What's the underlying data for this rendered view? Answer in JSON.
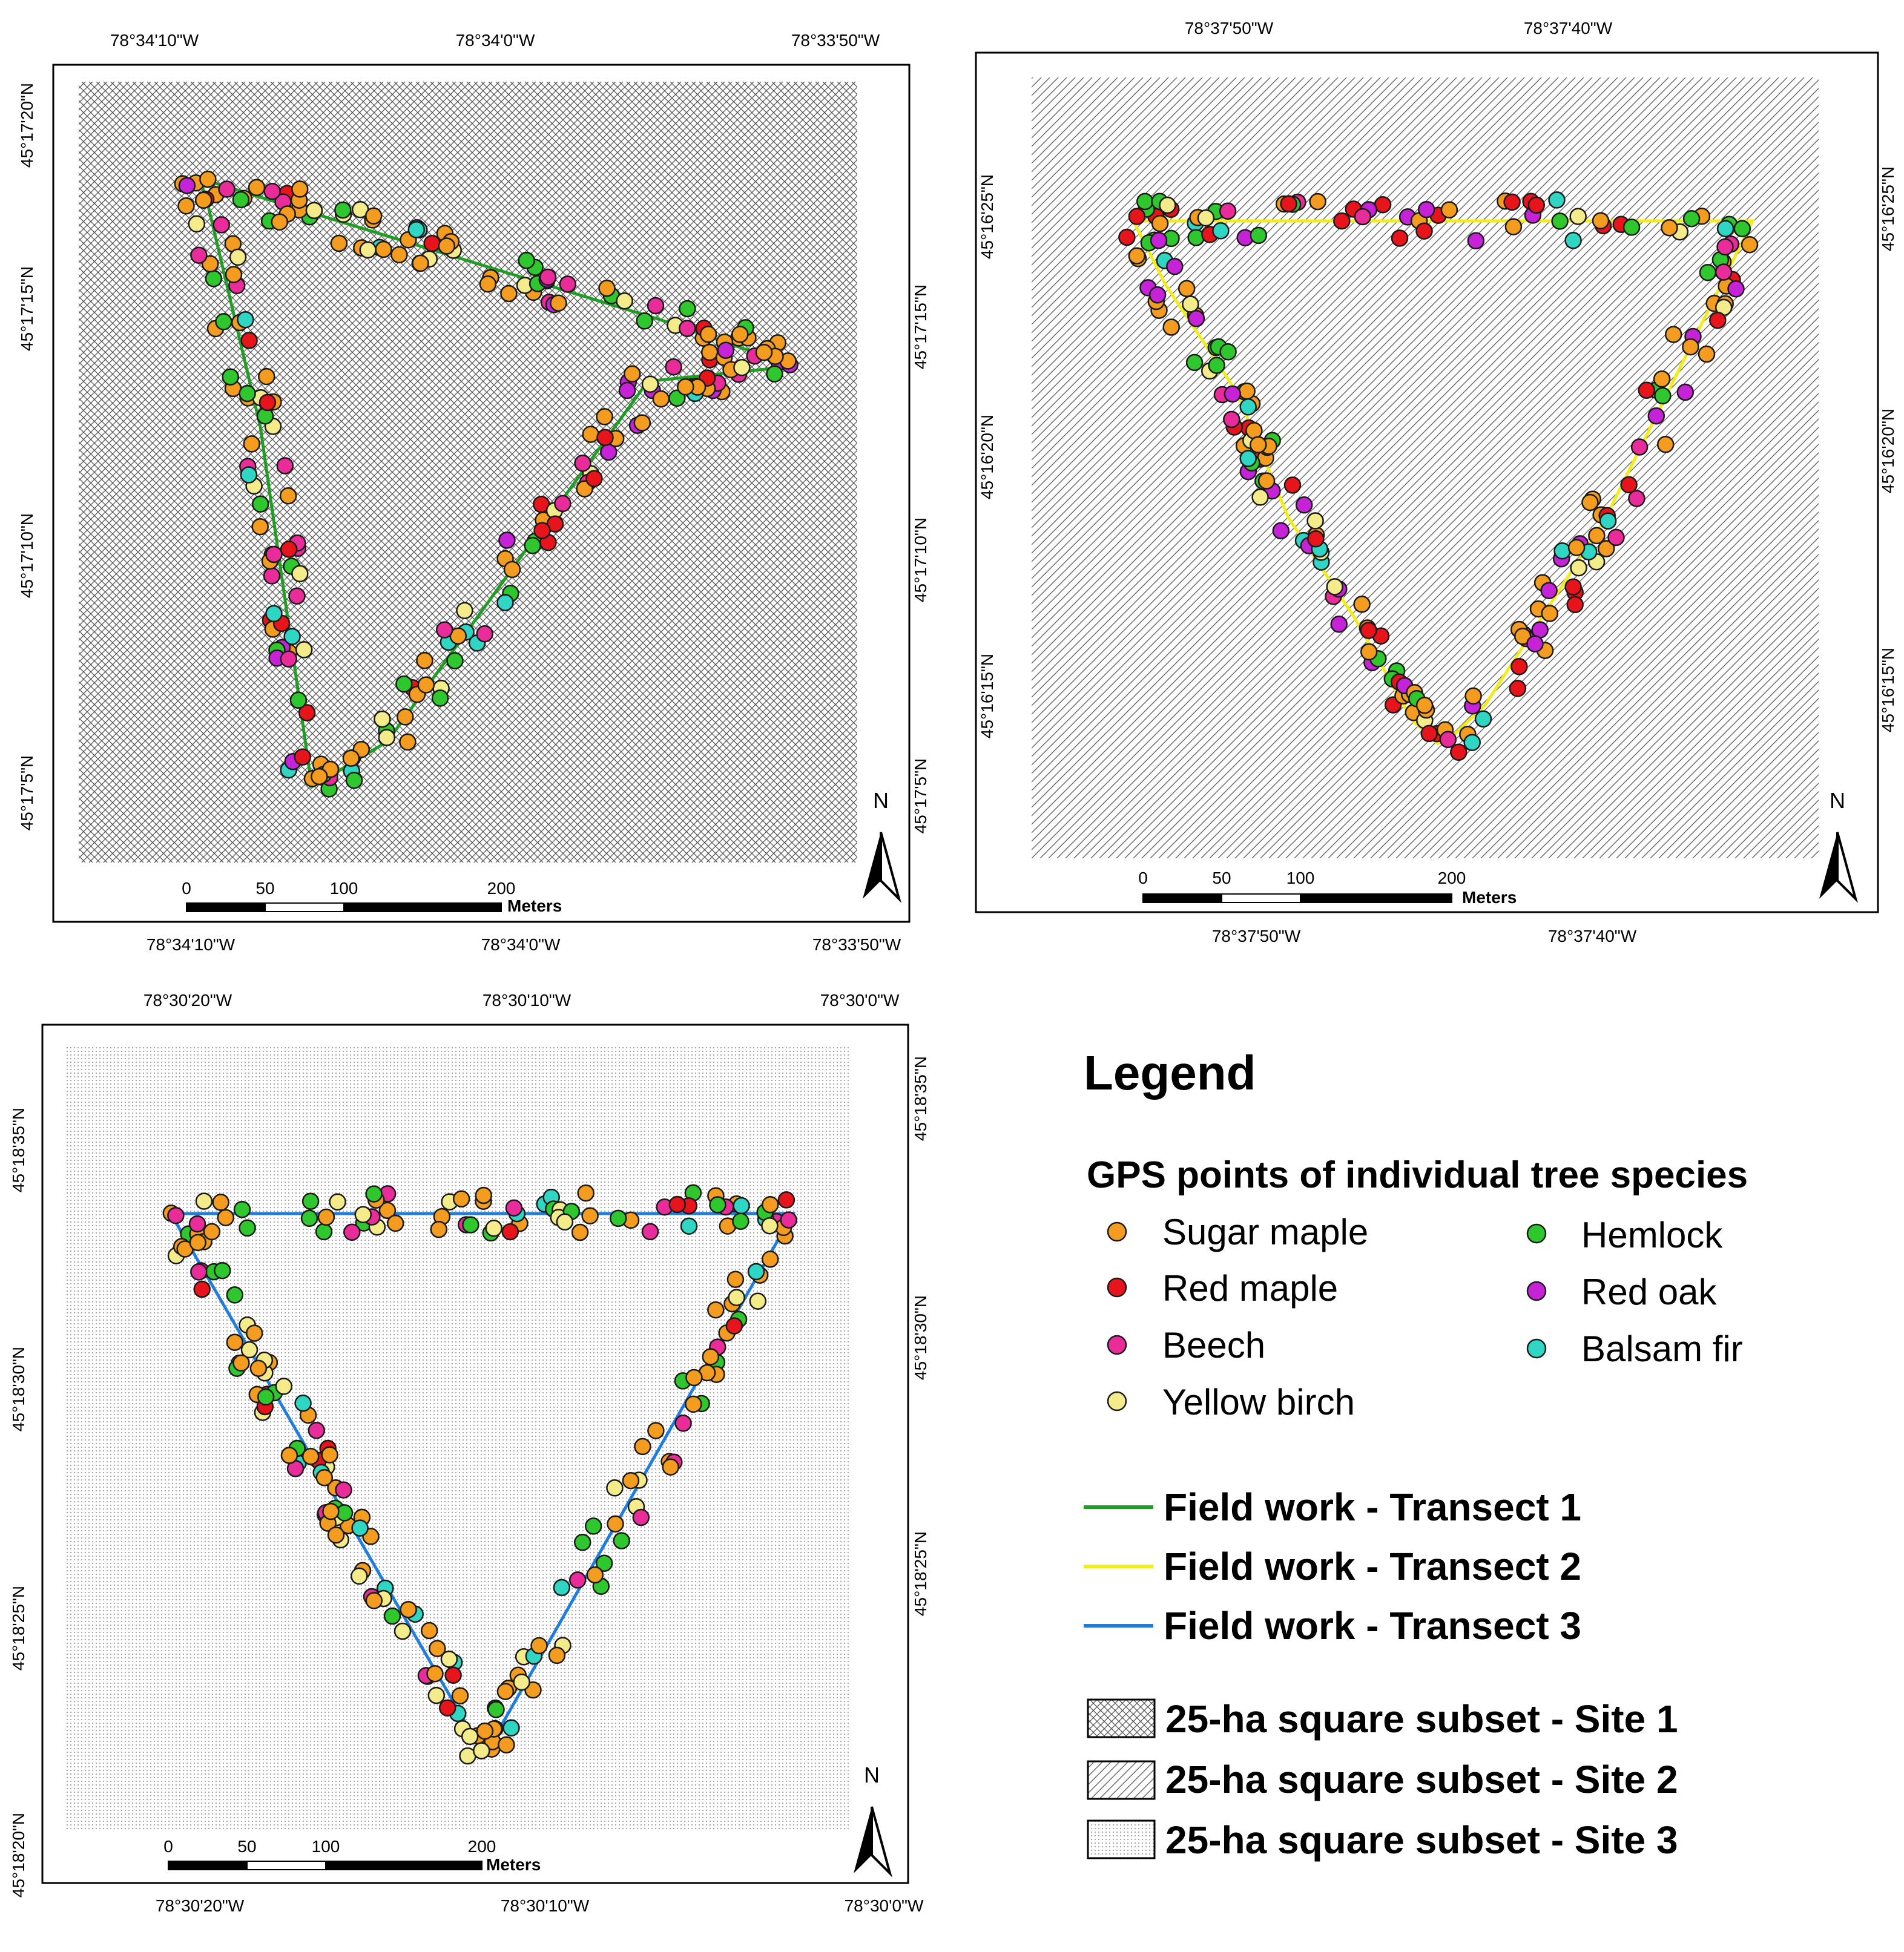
{
  "species": [
    {
      "key": "sm",
      "label": "Sugar maple",
      "color": "#f39c1f"
    },
    {
      "key": "rm",
      "label": "Red maple",
      "color": "#e8141b"
    },
    {
      "key": "be",
      "label": "Beech",
      "color": "#ea2c9a"
    },
    {
      "key": "yb",
      "label": "Yellow birch",
      "color": "#f4ec8a"
    },
    {
      "key": "he",
      "label": "Hemlock",
      "color": "#2ec72e"
    },
    {
      "key": "ro",
      "label": "Red oak",
      "color": "#c623d8"
    },
    {
      "key": "bf",
      "label": "Balsam fir",
      "color": "#2fd6c4"
    }
  ],
  "legend": {
    "title": "Legend",
    "subtitle": "GPS points of individual tree species",
    "transects": [
      {
        "label": "Field work - Transect 1",
        "color": "#1e9e22"
      },
      {
        "label": "Field work - Transect 2",
        "color": "#f2ee15"
      },
      {
        "label": "Field work - Transect 3",
        "color": "#1f7de0"
      }
    ],
    "subsets": [
      {
        "label": "25-ha square subset - Site 1",
        "pattern": "crosshatch"
      },
      {
        "label": "25-ha square subset - Site 2",
        "pattern": "diagonal"
      },
      {
        "label": "25-ha square subset - Site 3",
        "pattern": "dotted"
      }
    ]
  },
  "maps": [
    {
      "id": "site1",
      "transect_color": "#1e9e22",
      "pattern": "crosshatch",
      "top_ticks": [
        "78°34'10\"W",
        "78°34'0\"W",
        "78°33'50\"W"
      ],
      "bottom_ticks": [
        "78°34'10\"W",
        "78°34'0\"W",
        "78°33'50\"W"
      ],
      "left_ticks": [
        "45°17'20\"N",
        "45°17'15\"N",
        "45°17'10\"N",
        "45°17'5\"N"
      ],
      "right_ticks": [
        "45°17'15\"N",
        "45°17'10\"N",
        "45°17'5\"N"
      ],
      "scale_labels": [
        "0",
        "50",
        "100",
        "200"
      ],
      "scale_unit": "Meters",
      "north": "N"
    },
    {
      "id": "site2",
      "transect_color": "#f2ee15",
      "pattern": "diagonal",
      "top_ticks": [
        "78°37'50\"W",
        "78°37'40\"W"
      ],
      "bottom_ticks": [
        "78°37'50\"W",
        "78°37'40\"W"
      ],
      "left_ticks": [
        "45°16'25\"N",
        "45°16'20\"N",
        "45°16'15\"N"
      ],
      "right_ticks": [
        "45°16'25\"N",
        "45°16'20\"N",
        "45°16'15\"N"
      ],
      "scale_labels": [
        "0",
        "50",
        "100",
        "200"
      ],
      "scale_unit": "Meters",
      "north": "N"
    },
    {
      "id": "site3",
      "transect_color": "#1f7de0",
      "pattern": "dotted",
      "top_ticks": [
        "78°30'20\"W",
        "78°30'10\"W",
        "78°30'0\"W"
      ],
      "bottom_ticks": [
        "78°30'20\"W",
        "78°30'10\"W",
        "78°30'0\"W"
      ],
      "left_ticks": [
        "45°18'35\"N",
        "45°18'30\"N",
        "45°18'25\"N",
        "45°18'20\"N"
      ],
      "right_ticks": [
        "45°18'35\"N",
        "45°18'30\"N",
        "45°18'25\"N"
      ],
      "scale_labels": [
        "0",
        "50",
        "100",
        "200"
      ],
      "scale_unit": "Meters",
      "north": "N"
    }
  ]
}
